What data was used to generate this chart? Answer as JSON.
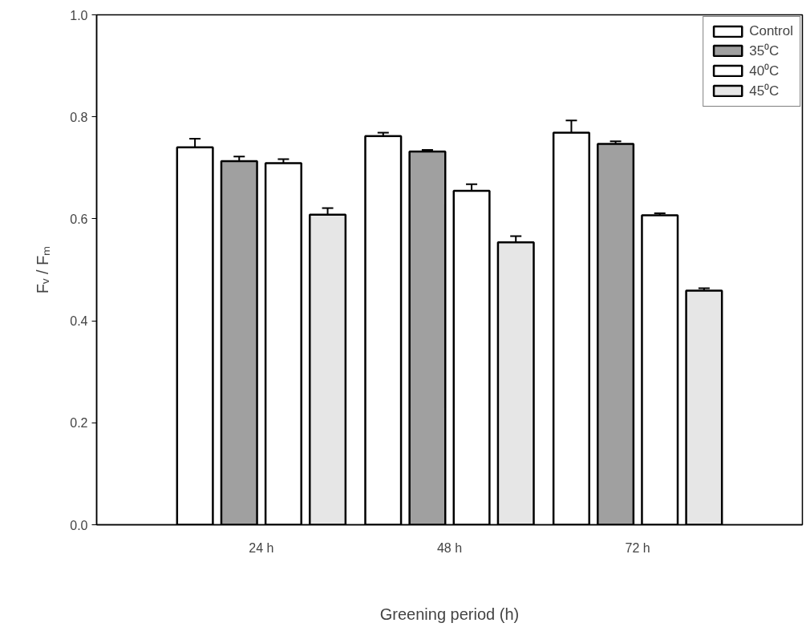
{
  "chart_data": {
    "type": "bar",
    "xlabel": "Greening period (h)",
    "ylabel": "Fᵥ / Fₘ",
    "categories": [
      "24 h",
      "48 h",
      "72 h"
    ],
    "series": [
      {
        "name": "Control",
        "color": "#ffffff",
        "values": [
          0.74,
          0.762,
          0.769
        ],
        "errors": [
          0.017,
          0.007,
          0.024
        ]
      },
      {
        "name": "35⁰C",
        "color": "#a0a0a0",
        "values": [
          0.713,
          0.732,
          0.747
        ],
        "errors": [
          0.009,
          0.003,
          0.005
        ]
      },
      {
        "name": "40⁰C",
        "color": "#ffffff",
        "values": [
          0.709,
          0.655,
          0.607
        ],
        "errors": [
          0.008,
          0.013,
          0.004
        ]
      },
      {
        "name": "45⁰C",
        "color": "#e6e6e6",
        "values": [
          0.608,
          0.554,
          0.459
        ],
        "errors": [
          0.013,
          0.012,
          0.005
        ]
      }
    ],
    "ylim": [
      0,
      1.0
    ],
    "yticks": [
      {
        "value": 0,
        "label": "0.0"
      },
      0.2,
      0.4,
      0.6,
      0.8,
      {
        "value": 1.0,
        "label": "1.0"
      }
    ],
    "grid": false,
    "legend": "top right"
  }
}
